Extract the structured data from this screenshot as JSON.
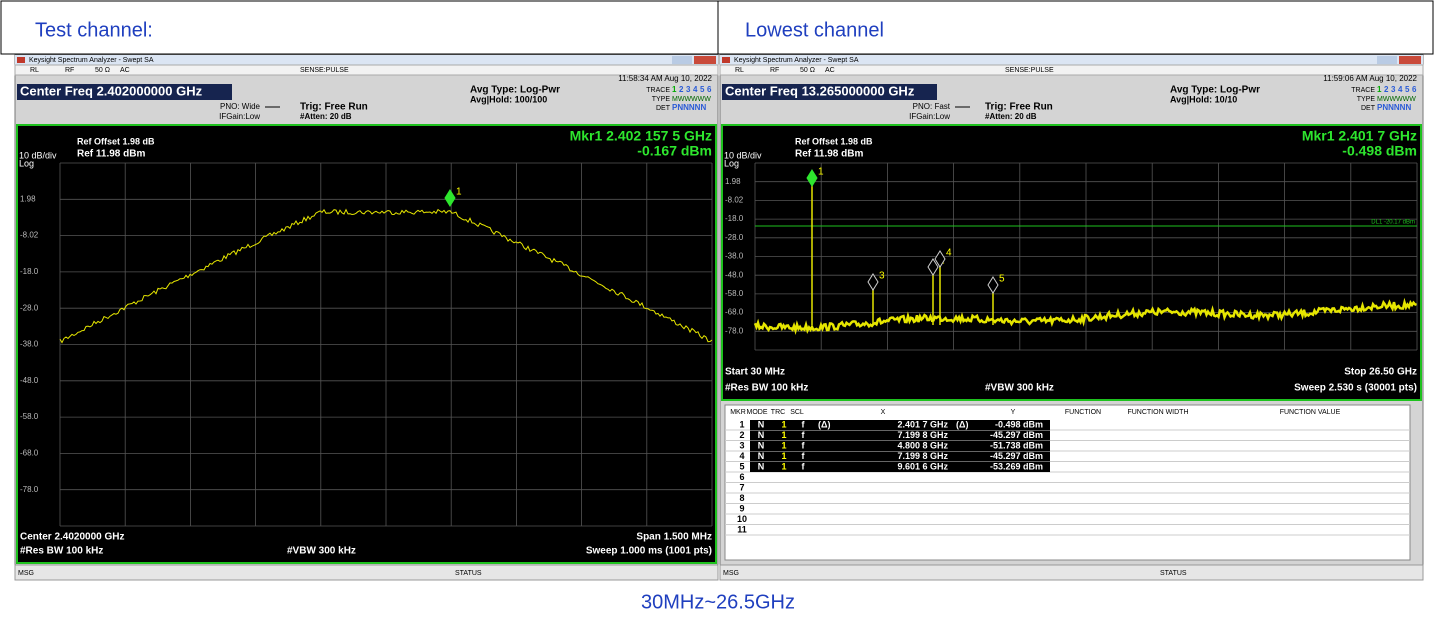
{
  "header": {
    "left": "Test channel:",
    "right": "Lowest channel"
  },
  "caption": "30MHz~26.5GHz",
  "panels": [
    {
      "title": "Keysight Spectrum Analyzer - Swept SA",
      "menu": [
        "RL",
        "RF",
        "50 Ω",
        "AC",
        "SENSE:PULSE"
      ],
      "time": "11:58:34 AM Aug 10, 2022",
      "center_freq": "Center Freq 2.402000000 GHz",
      "pno": "PNO: Wide",
      "ifgain": "IFGain:Low",
      "trig": "Trig: Free Run",
      "atten": "#Atten: 20 dB",
      "avg_type": "Avg Type: Log-Pwr",
      "avg_hold": "Avg|Hold: 100/100",
      "trace_label": "TRACE",
      "trace_numbers": [
        "1",
        "2",
        "3",
        "4",
        "5",
        "6"
      ],
      "type_label": "TYPE",
      "type_value": "MWWWWW",
      "det_label": "DET",
      "det_value": "PNNNNN",
      "ref_offset": "Ref Offset 1.98 dB",
      "scale": "10 dB/div",
      "log": "Log",
      "ref_level": "Ref 11.98 dBm",
      "marker_freq": "Mkr1 2.402 157 5 GHz",
      "marker_level": "-0.167 dBm",
      "yticks": [
        "1.98",
        "-8.02",
        "-18.0",
        "-28.0",
        "-38.0",
        "-48.0",
        "-58.0",
        "-68.0",
        "-78.0"
      ],
      "markers": [
        "1"
      ],
      "bottom": {
        "left1": "Center 2.4020000 GHz",
        "right1": "Span 1.500 MHz",
        "left2": "#Res BW 100 kHz",
        "mid2": "#VBW 300 kHz",
        "right2": "Sweep  1.000 ms (1001 pts)"
      },
      "msg": "MSG",
      "status": "STATUS"
    },
    {
      "title": "Keysight Spectrum Analyzer - Swept SA",
      "menu": [
        "RL",
        "RF",
        "50 Ω",
        "AC",
        "SENSE:PULSE"
      ],
      "time": "11:59:06 AM Aug 10, 2022",
      "center_freq": "Center Freq 13.265000000 GHz",
      "pno": "PNO: Fast",
      "ifgain": "IFGain:Low",
      "trig": "Trig: Free Run",
      "atten": "#Atten: 20 dB",
      "avg_type": "Avg Type: Log-Pwr",
      "avg_hold": "Avg|Hold: 10/10",
      "trace_label": "TRACE",
      "trace_numbers": [
        "1",
        "2",
        "3",
        "4",
        "5",
        "6"
      ],
      "type_label": "TYPE",
      "type_value": "MWWWWW",
      "det_label": "DET",
      "det_value": "PNNNNN",
      "ref_offset": "Ref Offset 1.98 dB",
      "scale": "10 dB/div",
      "log": "Log",
      "ref_level": "Ref 11.98 dBm",
      "marker_freq": "Mkr1 2.401 7 GHz",
      "marker_level": "-0.498 dBm",
      "yticks": [
        "1.98",
        "-8.02",
        "-18.0",
        "-28.0",
        "-38.0",
        "-48.0",
        "-58.0",
        "-68.0",
        "-78.0"
      ],
      "markers": [
        "1",
        "3",
        "2",
        "4",
        "5"
      ],
      "display_line": "DL1 -20.17 dBm",
      "bottom": {
        "left1": "Start 30 MHz",
        "right1": "Stop 26.50 GHz",
        "left2": "#Res BW 100 kHz",
        "mid2": "#VBW 300 kHz",
        "right2": "Sweep  2.530 s (30001 pts)"
      },
      "marker_table": {
        "columns": [
          "MKR",
          "MODE",
          "TRC",
          "SCL",
          "X",
          "Y",
          "FUNCTION",
          "FUNCTION WIDTH",
          "FUNCTION VALUE"
        ],
        "rows": [
          [
            "1",
            "N",
            "1",
            "f",
            "(Δ)",
            "2.401 7 GHz",
            "(Δ)",
            "-0.498 dBm"
          ],
          [
            "2",
            "N",
            "1",
            "f",
            "",
            "7.199 8 GHz",
            "",
            "-45.297 dBm"
          ],
          [
            "3",
            "N",
            "1",
            "f",
            "",
            "4.800 8 GHz",
            "",
            "-51.738 dBm"
          ],
          [
            "4",
            "N",
            "1",
            "f",
            "",
            "7.199 8 GHz",
            "",
            "-45.297 dBm"
          ],
          [
            "5",
            "N",
            "1",
            "f",
            "",
            "9.601 6 GHz",
            "",
            "-53.269 dBm"
          ],
          [
            "6"
          ],
          [
            "7"
          ],
          [
            "8"
          ],
          [
            "9"
          ],
          [
            "10"
          ],
          [
            "11"
          ]
        ]
      },
      "msg": "MSG",
      "status": "STATUS"
    }
  ]
}
